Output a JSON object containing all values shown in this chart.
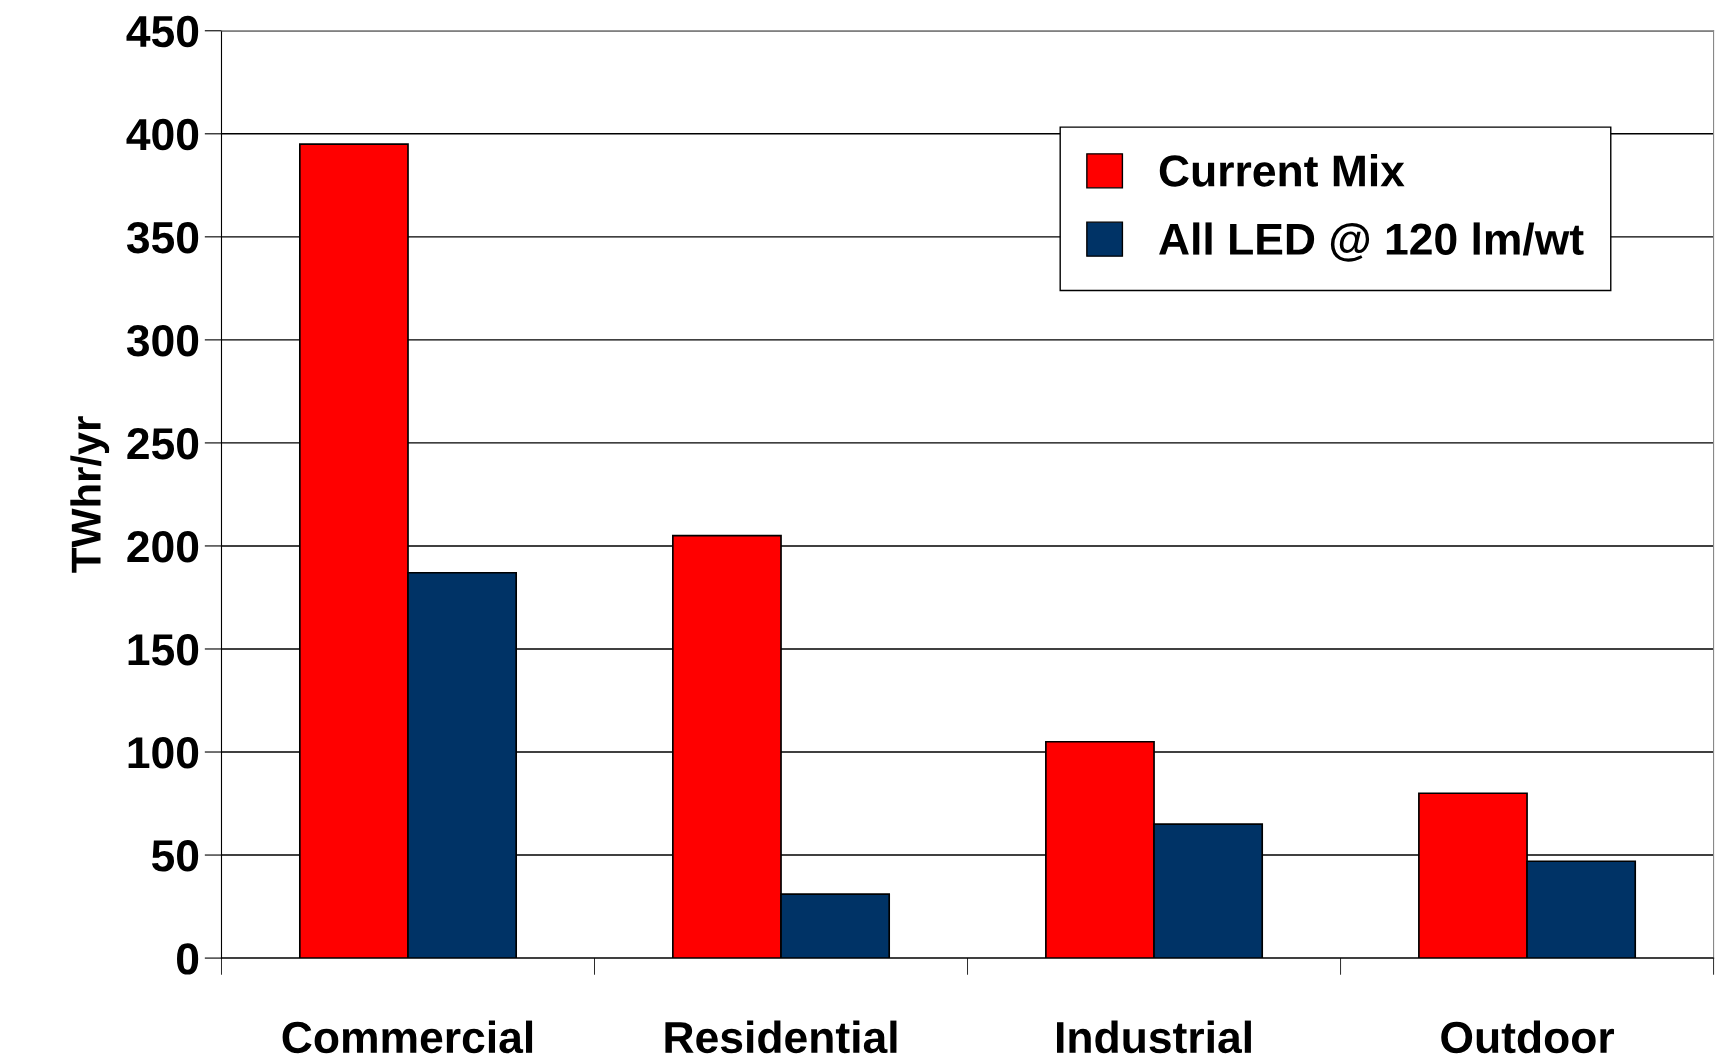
{
  "chart_data": {
    "type": "bar",
    "ylabel": "TWhr/yr",
    "categories": [
      "Commercial",
      "Residential",
      "Industrial",
      "Outdoor"
    ],
    "series": [
      {
        "name": "Current Mix",
        "color": "#ff0000",
        "values": [
          395,
          205,
          105,
          80
        ]
      },
      {
        "name": "All LED @ 120 lm/wt",
        "color": "#003366",
        "values": [
          187,
          31,
          65,
          47
        ]
      }
    ],
    "ylim": [
      0,
      450
    ],
    "yticks": [
      0,
      50,
      100,
      150,
      200,
      250,
      300,
      350,
      400,
      450
    ],
    "grid": "y",
    "legend": "top right"
  }
}
